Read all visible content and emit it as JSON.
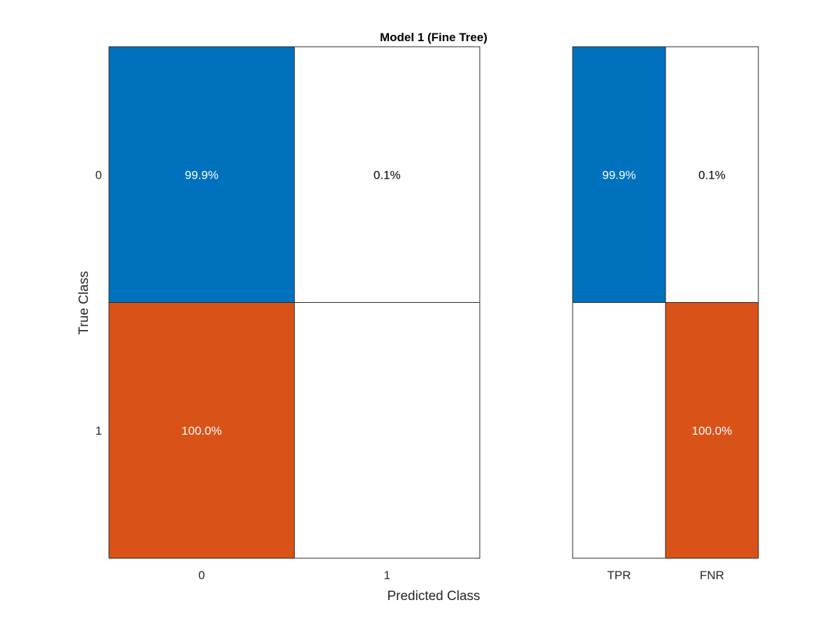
{
  "chart_data": [
    {
      "type": "heatmap",
      "title": "Model 1 (Fine Tree)",
      "xlabel": "Predicted Class",
      "ylabel": "True Class",
      "x_categories": [
        "0",
        "1"
      ],
      "y_categories": [
        "0",
        "1"
      ],
      "values": [
        [
          99.9,
          0.1
        ],
        [
          100.0,
          0.0
        ]
      ],
      "cell_labels": [
        [
          "99.9%",
          "0.1%"
        ],
        [
          "100.0%",
          ""
        ]
      ],
      "grid": false
    },
    {
      "type": "heatmap",
      "title": "",
      "xlabel": "",
      "ylabel": "",
      "x_categories": [
        "TPR",
        "FNR"
      ],
      "y_categories": [
        "0",
        "1"
      ],
      "values": [
        [
          99.9,
          0.1
        ],
        [
          0.0,
          100.0
        ]
      ],
      "cell_labels": [
        [
          "99.9%",
          "0.1%"
        ],
        [
          "",
          "100.0%"
        ]
      ],
      "grid": false
    }
  ],
  "colors": {
    "correct": "#0072bd",
    "incorrect": "#d95319",
    "background": "#ffffff",
    "text_dark_cell": "#ffffff",
    "text_light_cell": "#000000"
  }
}
